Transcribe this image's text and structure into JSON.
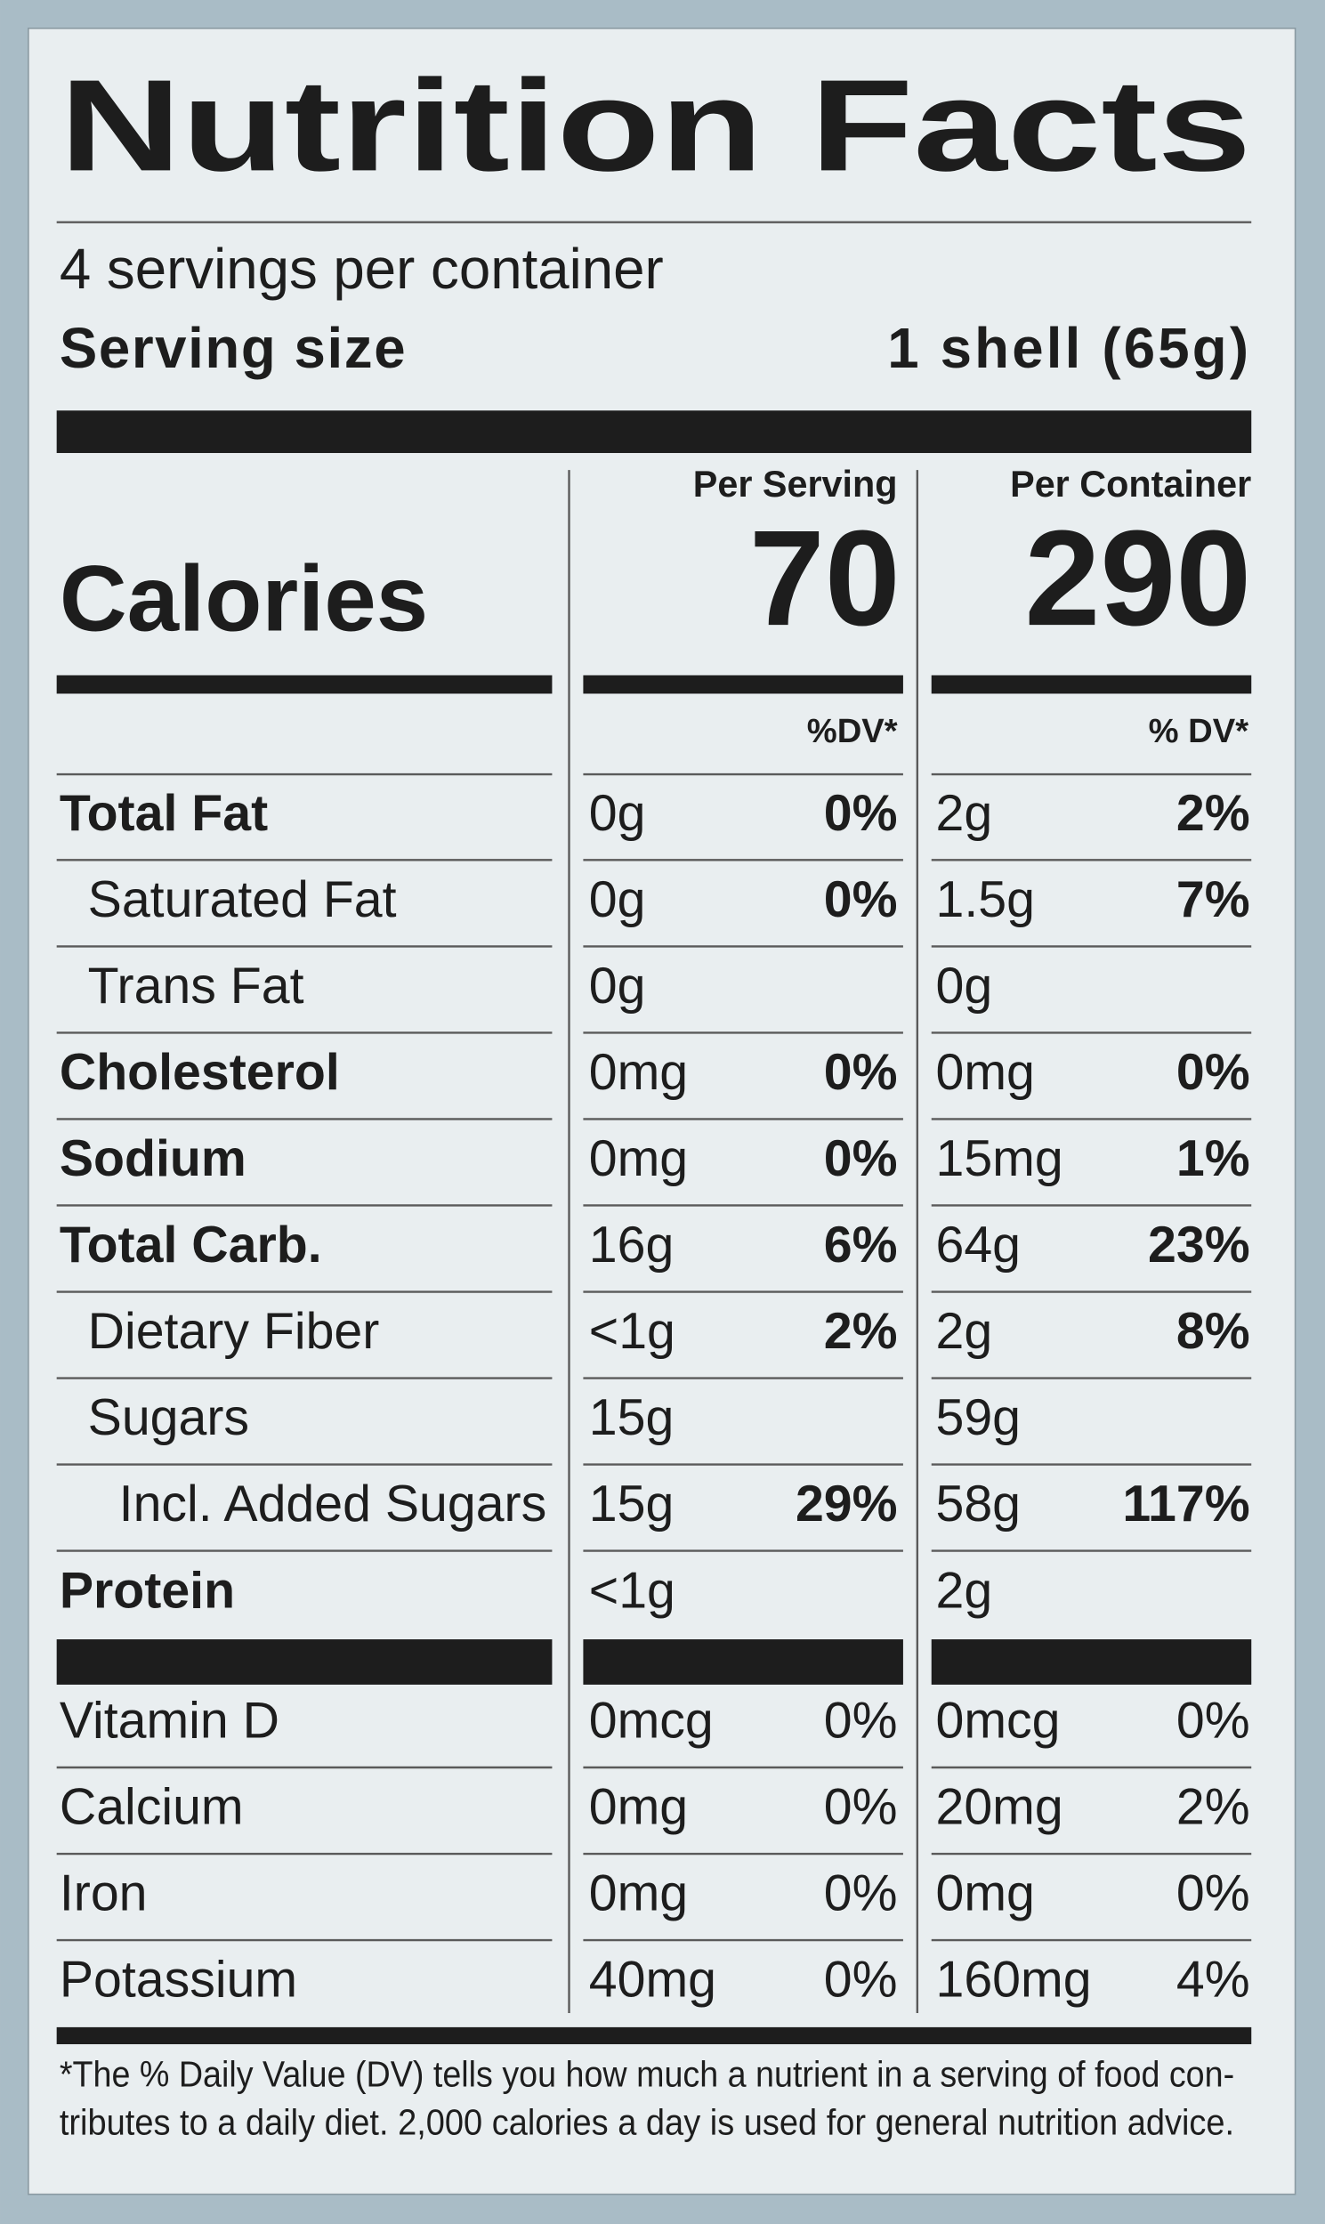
{
  "header": {
    "title": "Nutrition Facts",
    "servings": "4 servings per container",
    "serving_size_label": "Serving size",
    "serving_size_value": "1 shell (65g)"
  },
  "columns": {
    "serving": "Per Serving",
    "container": "Per Container"
  },
  "calories": {
    "label": "Calories",
    "serving": 70,
    "container": 290
  },
  "dv_headers": {
    "serving": "%DV*",
    "container": "% DV*"
  },
  "rows": [
    {
      "label": "Total Fat",
      "serving": {
        "amount": "0g",
        "dv": "0%"
      },
      "container": {
        "amount": "2g",
        "dv": "2%"
      }
    },
    {
      "label": "Saturated Fat",
      "serving": {
        "amount": "0g",
        "dv": "0%"
      },
      "container": {
        "amount": "1.5g",
        "dv": "7%"
      }
    },
    {
      "label": "Trans Fat",
      "serving": {
        "amount": "0g"
      },
      "container": {
        "amount": "0g"
      }
    },
    {
      "label": "Cholesterol",
      "serving": {
        "amount": "0mg",
        "dv": "0%"
      },
      "container": {
        "amount": "0mg",
        "dv": "0%"
      }
    },
    {
      "label": "Sodium",
      "serving": {
        "amount": "0mg",
        "dv": "0%"
      },
      "container": {
        "amount": "15mg",
        "dv": "1%"
      }
    },
    {
      "label": "Total Carb.",
      "serving": {
        "amount": "16g",
        "dv": "6%"
      },
      "container": {
        "amount": "64g",
        "dv": "23%"
      }
    },
    {
      "label": "Dietary Fiber",
      "serving": {
        "amount": "<1g",
        "dv": "2%"
      },
      "container": {
        "amount": "2g",
        "dv": "8%"
      }
    },
    {
      "label": "Sugars",
      "serving": {
        "amount": "15g"
      },
      "container": {
        "amount": "59g"
      }
    },
    {
      "label": "Incl. Added Sugars",
      "serving": {
        "amount": "15g",
        "dv": "29%"
      },
      "container": {
        "amount": "58g",
        "dv": "117%"
      }
    },
    {
      "label": "Protein",
      "serving": {
        "amount": "<1g"
      },
      "container": {
        "amount": "2g"
      }
    }
  ],
  "vitamins": [
    {
      "label": "Vitamin D",
      "serving": {
        "amount": "0mcg",
        "dv": "0%"
      },
      "container": {
        "amount": "0mcg",
        "dv": "0%"
      }
    },
    {
      "label": "Calcium",
      "serving": {
        "amount": "0mg",
        "dv": "0%"
      },
      "container": {
        "amount": "20mg",
        "dv": "2%"
      }
    },
    {
      "label": "Iron",
      "serving": {
        "amount": "0mg",
        "dv": "0%"
      },
      "container": {
        "amount": "0mg",
        "dv": "0%"
      }
    },
    {
      "label": "Potassium",
      "serving": {
        "amount": "40mg",
        "dv": "0%"
      },
      "container": {
        "amount": "160mg",
        "dv": "4%"
      }
    }
  ],
  "footnote": [
    "*The % Daily Value (DV) tells you how much a nutrient in a serving of food con-",
    "tributes to a daily diet. 2,000 calories a day is used for general nutrition advice."
  ]
}
